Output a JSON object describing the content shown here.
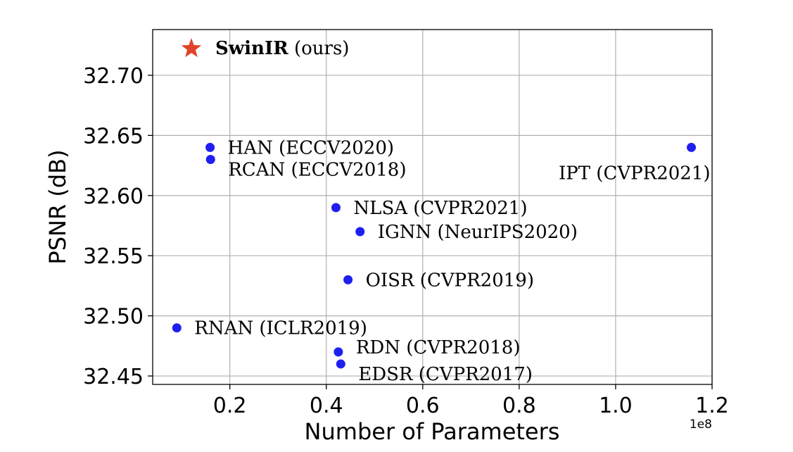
{
  "chart_data": {
    "type": "scatter",
    "xlabel": "Number of Parameters",
    "ylabel": "PSNR (dB)",
    "x_exponent_label": "1e8",
    "x_scale": 100000000,
    "xlim": [
      0.04,
      1.2
    ],
    "ylim": [
      32.443,
      32.738
    ],
    "grid": true,
    "x_ticks": [
      {
        "value": 0.2,
        "label": "0.2"
      },
      {
        "value": 0.4,
        "label": "0.4"
      },
      {
        "value": 0.6,
        "label": "0.6"
      },
      {
        "value": 0.8,
        "label": "0.8"
      },
      {
        "value": 1.0,
        "label": "1.0"
      },
      {
        "value": 1.2,
        "label": "1.2"
      }
    ],
    "y_ticks": [
      {
        "value": 32.45,
        "label": "32.45"
      },
      {
        "value": 32.5,
        "label": "32.50"
      },
      {
        "value": 32.55,
        "label": "32.55"
      },
      {
        "value": 32.6,
        "label": "32.60"
      },
      {
        "value": 32.65,
        "label": "32.65"
      },
      {
        "value": 32.7,
        "label": "32.70"
      }
    ],
    "point_color": "#1f1ff0",
    "star_color": "#e0442a",
    "points": [
      {
        "label": "HAN (ECCV2020)",
        "x": 0.159,
        "y": 32.64,
        "label_pos": "right"
      },
      {
        "label": "RCAN (ECCV2018)",
        "x": 0.16,
        "y": 32.63,
        "label_pos": "right-below"
      },
      {
        "label": "IPT (CVPR2021)",
        "x": 1.157,
        "y": 32.64,
        "label_pos": "below-left"
      },
      {
        "label": "NLSA (CVPR2021)",
        "x": 0.42,
        "y": 32.59,
        "label_pos": "right"
      },
      {
        "label": "IGNN (NeurIPS2020)",
        "x": 0.47,
        "y": 32.57,
        "label_pos": "right"
      },
      {
        "label": "OISR (CVPR2019)",
        "x": 0.445,
        "y": 32.53,
        "label_pos": "right"
      },
      {
        "label": "RNAN (ICLR2019)",
        "x": 0.09,
        "y": 32.49,
        "label_pos": "right"
      },
      {
        "label": "RDN (CVPR2018)",
        "x": 0.425,
        "y": 32.47,
        "label_pos": "right-above"
      },
      {
        "label": "EDSR (CVPR2017)",
        "x": 0.43,
        "y": 32.46,
        "label_pos": "right-below"
      }
    ],
    "legend": {
      "position": "top-left",
      "marker": "star",
      "name_bold": "SwinIR",
      "name_suffix": " (ours)"
    }
  }
}
